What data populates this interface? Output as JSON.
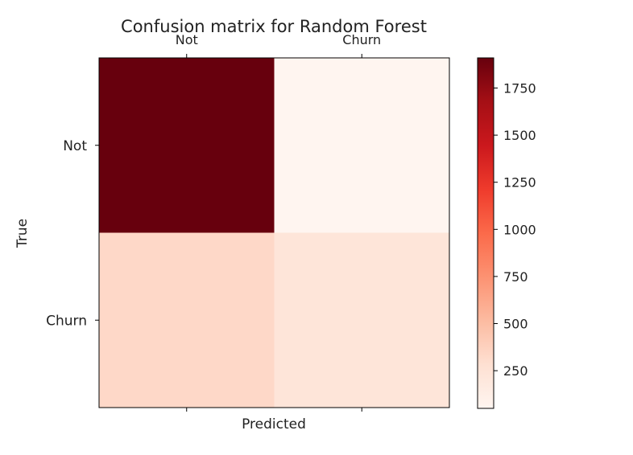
{
  "chart_data": {
    "type": "heatmap",
    "title": "Confusion matrix for Random Forest",
    "xlabel": "Predicted",
    "ylabel": "True",
    "x_categories": [
      "Not",
      "Churn"
    ],
    "y_categories": [
      "Not",
      "Churn"
    ],
    "values": [
      [
        1910,
        50
      ],
      [
        330,
        230
      ]
    ],
    "colormap": "Reds",
    "colorbar": {
      "ticks": [
        250,
        500,
        750,
        1000,
        1250,
        1500,
        1750
      ],
      "min": 50,
      "max": 1910
    },
    "grid": false,
    "legend": "colorbar-right"
  }
}
